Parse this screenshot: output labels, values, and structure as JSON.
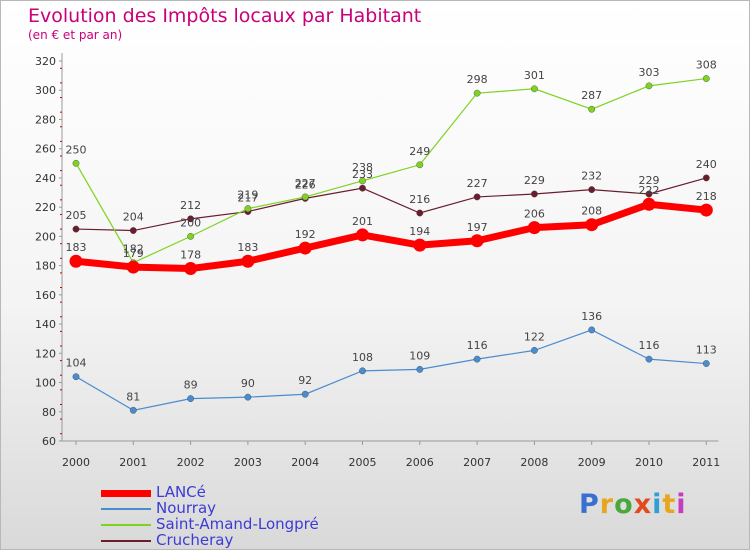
{
  "header": {
    "title": "Evolution des Impôts locaux par Habitant",
    "subtitle": "(en € et par an)"
  },
  "logo": {
    "text": "Proxiti",
    "letter_colors": [
      "#3a6fd1",
      "#e8a61c",
      "#4aa83a",
      "#e24a1c",
      "#2f9fd6",
      "#e8a61c",
      "#c83ac0"
    ]
  },
  "chart_data": {
    "type": "line",
    "title": "Evolution des Impôts locaux par Habitant",
    "subtitle": "(en € et par an)",
    "x": [
      "2000",
      "2001",
      "2002",
      "2003",
      "2004",
      "2005",
      "2006",
      "2007",
      "2008",
      "2009",
      "2010",
      "2011"
    ],
    "ylim": [
      60,
      320
    ],
    "yticks": [
      60,
      80,
      100,
      120,
      140,
      160,
      180,
      200,
      220,
      240,
      260,
      280,
      300,
      320
    ],
    "grid": false,
    "legend_position": "bottom-left",
    "series": [
      {
        "name": "LANCé",
        "color": "#ff0000",
        "values": [
          183,
          179,
          178,
          183,
          192,
          201,
          194,
          197,
          206,
          208,
          222,
          218
        ]
      },
      {
        "name": "Nourray",
        "color": "#4a8cd0",
        "values": [
          104,
          81,
          89,
          90,
          92,
          108,
          109,
          116,
          122,
          136,
          116,
          113
        ]
      },
      {
        "name": "Saint-Amand-Longpré",
        "color": "#7ed321",
        "values": [
          250,
          182,
          200,
          219,
          227,
          238,
          249,
          298,
          301,
          287,
          303,
          308
        ]
      },
      {
        "name": "Crucheray",
        "color": "#6b1d2e",
        "values": [
          205,
          204,
          212,
          217,
          226,
          233,
          216,
          227,
          229,
          232,
          229,
          240
        ]
      }
    ]
  }
}
